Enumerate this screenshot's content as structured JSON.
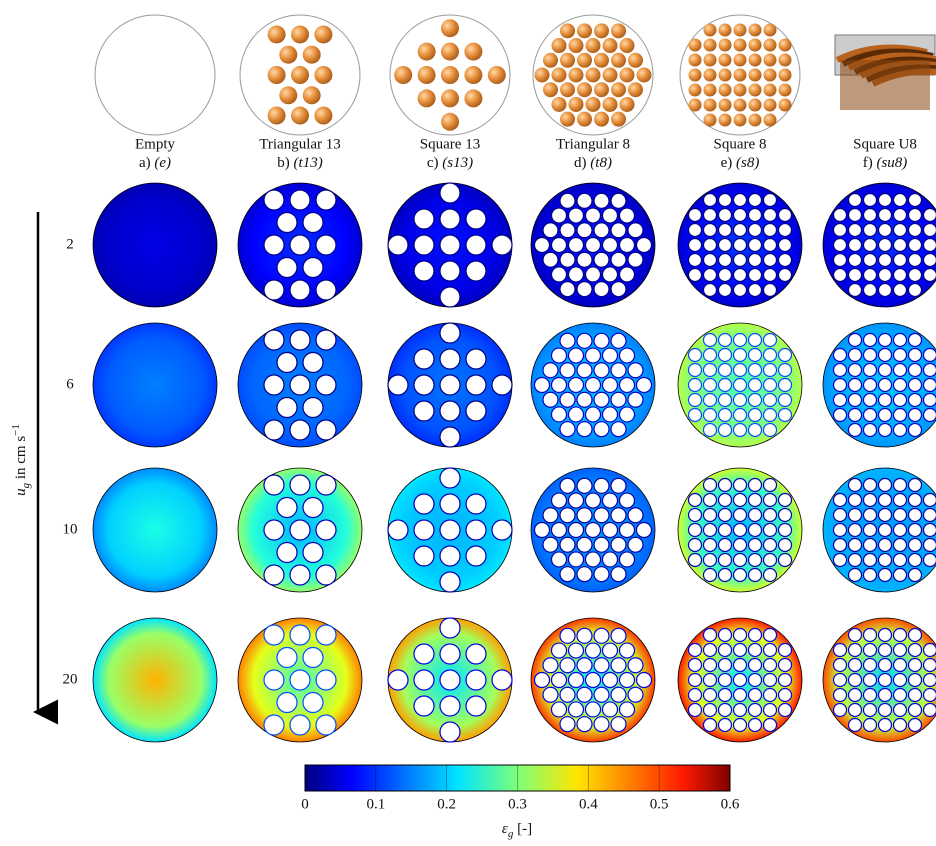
{
  "columns": [
    {
      "name": "Empty",
      "label": "a)",
      "code": "(e)"
    },
    {
      "name": "Triangular 13",
      "label": "b)",
      "code": "(t13)"
    },
    {
      "name": "Square 13",
      "label": "c)",
      "code": "(s13)"
    },
    {
      "name": "Triangular 8",
      "label": "d)",
      "code": "(t8)"
    },
    {
      "name": "Square 8",
      "label": "e)",
      "code": "(s8)"
    },
    {
      "name": "Square U8",
      "label": "f)",
      "code": "(su8)"
    }
  ],
  "rows": [
    2,
    6,
    10,
    20
  ],
  "axis_label": {
    "symbol": "u",
    "subscript": "g",
    "text": " in cm s",
    "superscript": "−1"
  },
  "colorbar": {
    "ticks": [
      0,
      0.1,
      0.2,
      0.3,
      0.4,
      0.5,
      0.6
    ],
    "label": {
      "symbol": "ε",
      "subscript": "g",
      "unit": " [-]"
    }
  }
}
